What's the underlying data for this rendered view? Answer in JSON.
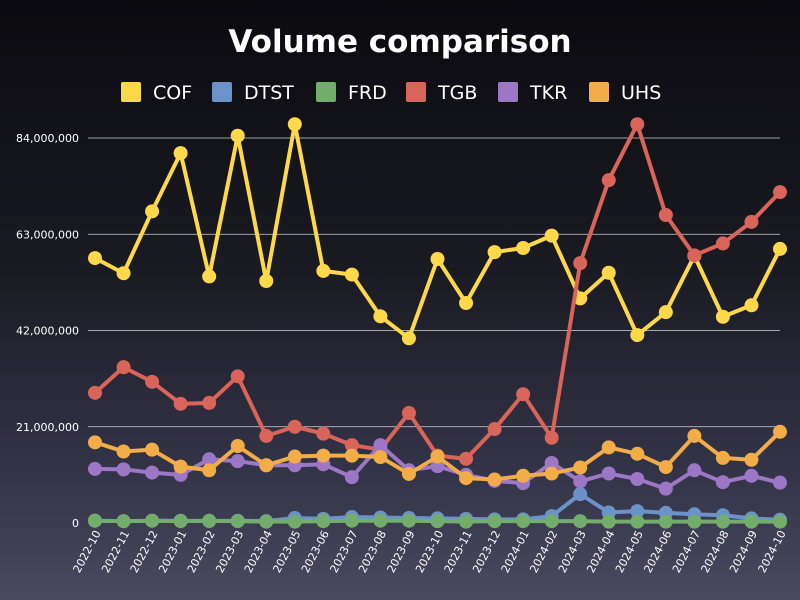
{
  "chart_data": {
    "type": "line",
    "title": "Volume comparison",
    "xlabel": "",
    "ylabel": "",
    "ylim": [
      0,
      88000000
    ],
    "yticks": [
      0,
      21000000,
      42000000,
      63000000,
      84000000
    ],
    "ytick_labels": [
      "0",
      "21,000,000",
      "42,000,000",
      "63,000,000",
      "84,000,000"
    ],
    "grid": "horizontal",
    "legend_position": "top",
    "categories": [
      "2022-10",
      "2022-11",
      "2022-12",
      "2023-01",
      "2023-02",
      "2023-03",
      "2023-04",
      "2023-05",
      "2023-06",
      "2023-07",
      "2023-08",
      "2023-09",
      "2023-10",
      "2023-11",
      "2023-12",
      "2024-01",
      "2024-02",
      "2024-03",
      "2024-04",
      "2024-05",
      "2024-06",
      "2024-07",
      "2024-08",
      "2024-09",
      "2024-10"
    ],
    "series": [
      {
        "name": "COF",
        "color": "#fdd94a",
        "values": [
          57800000,
          54500000,
          68000000,
          80700000,
          53800000,
          84500000,
          52800000,
          87000000,
          55000000,
          54200000,
          45100000,
          40300000,
          57600000,
          48000000,
          59100000,
          60000000,
          62700000,
          49000000,
          54600000,
          41000000,
          46000000,
          58300000,
          45000000,
          47500000,
          59800000
        ]
      },
      {
        "name": "DTST",
        "color": "#6b93c9",
        "values": [
          500000,
          400000,
          500000,
          500000,
          400000,
          500000,
          400000,
          1100000,
          900000,
          1300000,
          1200000,
          1100000,
          1000000,
          900000,
          800000,
          800000,
          1500000,
          6300000,
          2300000,
          2600000,
          2200000,
          1900000,
          1700000,
          1000000,
          700000
        ]
      },
      {
        "name": "FRD",
        "color": "#72ad6b",
        "values": [
          500000,
          400000,
          500000,
          400000,
          500000,
          400000,
          300000,
          300000,
          400000,
          500000,
          500000,
          500000,
          400000,
          300000,
          400000,
          400000,
          400000,
          400000,
          300000,
          300000,
          300000,
          300000,
          300000,
          300000,
          300000
        ]
      },
      {
        "name": "TGB",
        "color": "#d9645a",
        "values": [
          28400000,
          34000000,
          30800000,
          26000000,
          26200000,
          32000000,
          19000000,
          21000000,
          19500000,
          17000000,
          16000000,
          24000000,
          14700000,
          14000000,
          20500000,
          28100000,
          18600000,
          56700000,
          74800000,
          87000000,
          67200000,
          58400000,
          61000000,
          65700000,
          72200000
        ]
      },
      {
        "name": "TKR",
        "color": "#9b77c6",
        "values": [
          11800000,
          11700000,
          11000000,
          10500000,
          13900000,
          13500000,
          12600000,
          12600000,
          12800000,
          10000000,
          17000000,
          11500000,
          12400000,
          10500000,
          9200000,
          8700000,
          13100000,
          9100000,
          10800000,
          9600000,
          7500000,
          11500000,
          8900000,
          10300000,
          8800000
        ]
      },
      {
        "name": "UHS",
        "color": "#f2ad48",
        "values": [
          17600000,
          15600000,
          16000000,
          12300000,
          11500000,
          16800000,
          12600000,
          14500000,
          14700000,
          14700000,
          14400000,
          10700000,
          14500000,
          9800000,
          9500000,
          10300000,
          10800000,
          12100000,
          16500000,
          15100000,
          12200000,
          19000000,
          14200000,
          13800000,
          19900000
        ]
      }
    ]
  }
}
